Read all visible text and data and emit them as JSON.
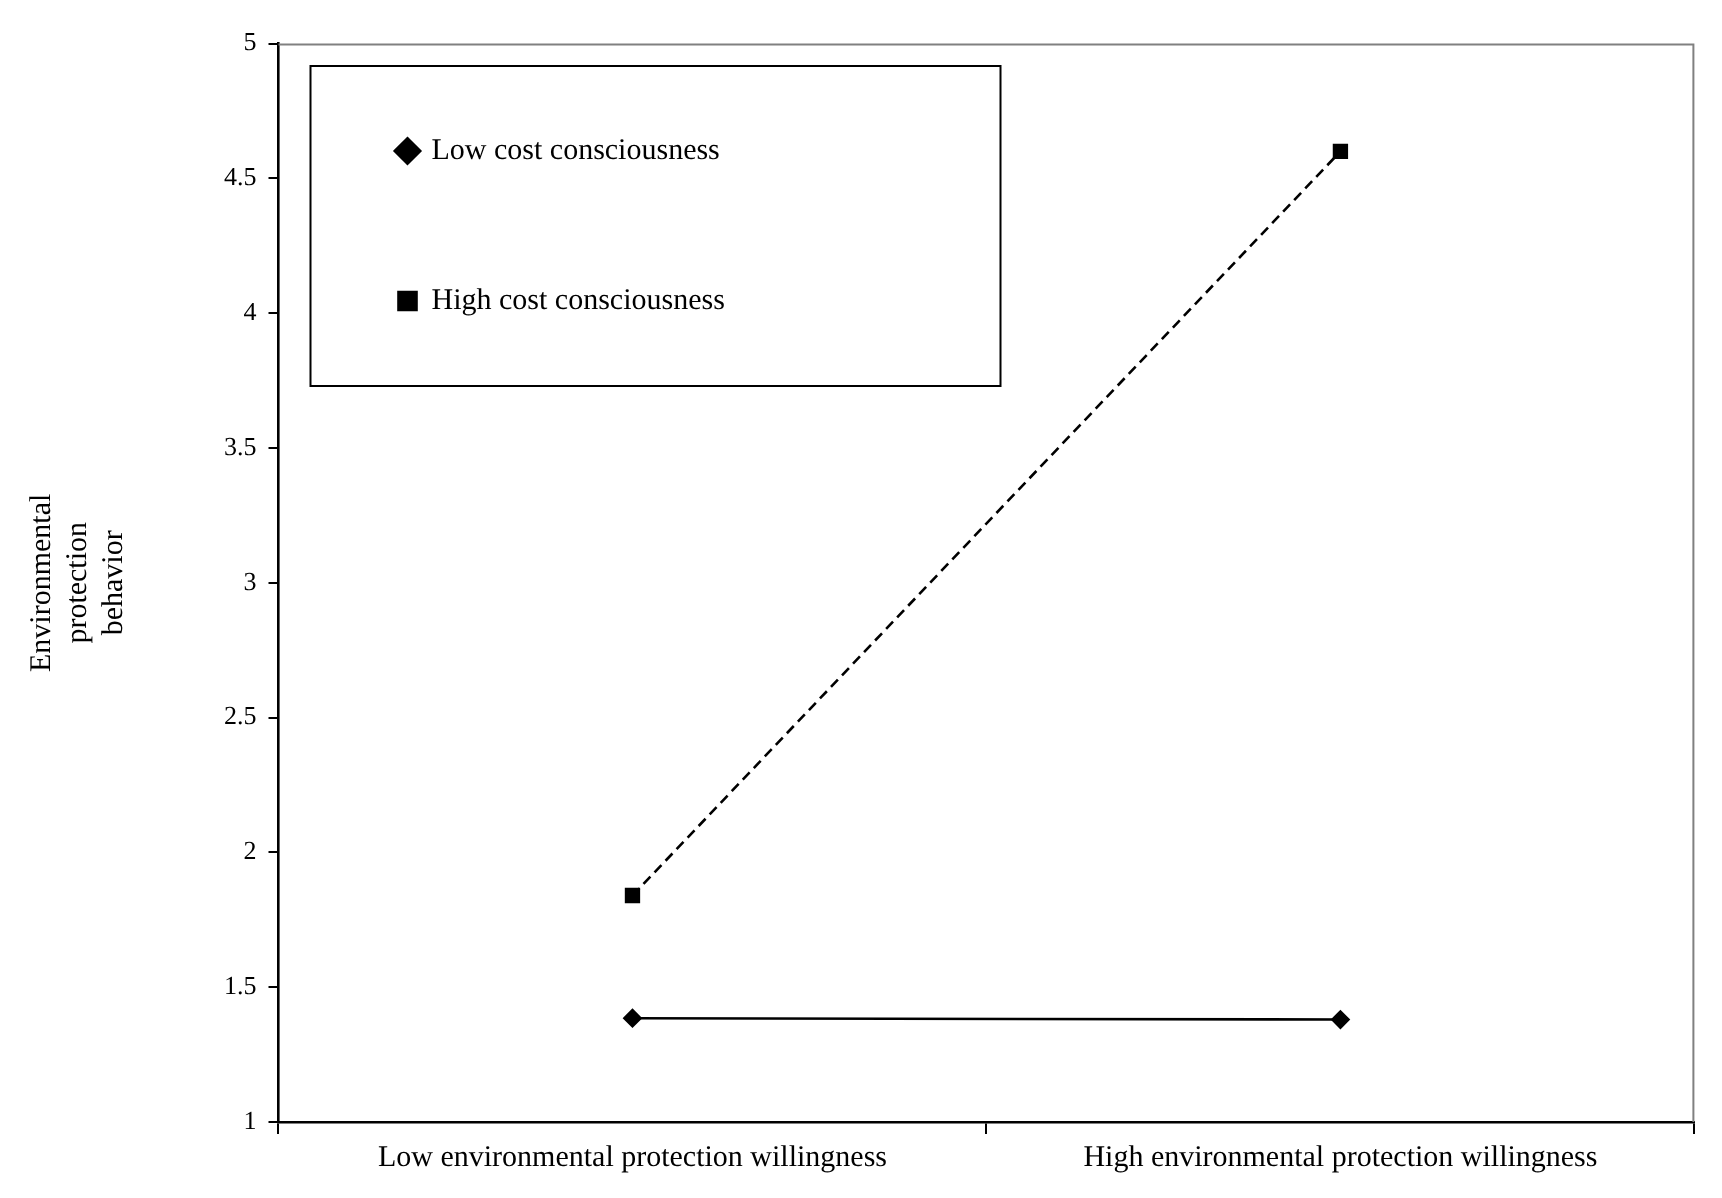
{
  "chart_data": {
    "type": "line",
    "ylabel": "Environmental protection behavior",
    "categories": [
      "Low environmental protection willingness",
      "High environmental protection willingness"
    ],
    "series": [
      {
        "name": "Low cost consciousness",
        "color": "#000000",
        "values": [
          1.385,
          1.38
        ],
        "marker": "diamond",
        "line_style": "solid"
      },
      {
        "name": "High cost consciousness",
        "color": "#000000",
        "values": [
          1.84,
          4.6
        ],
        "marker": "square",
        "line_style": "dashed"
      }
    ],
    "ylim": [
      1,
      5
    ],
    "yticks": [
      1,
      1.5,
      2,
      2.5,
      3,
      3.5,
      4,
      4.5,
      5
    ],
    "grid": false,
    "legend": "top left"
  }
}
